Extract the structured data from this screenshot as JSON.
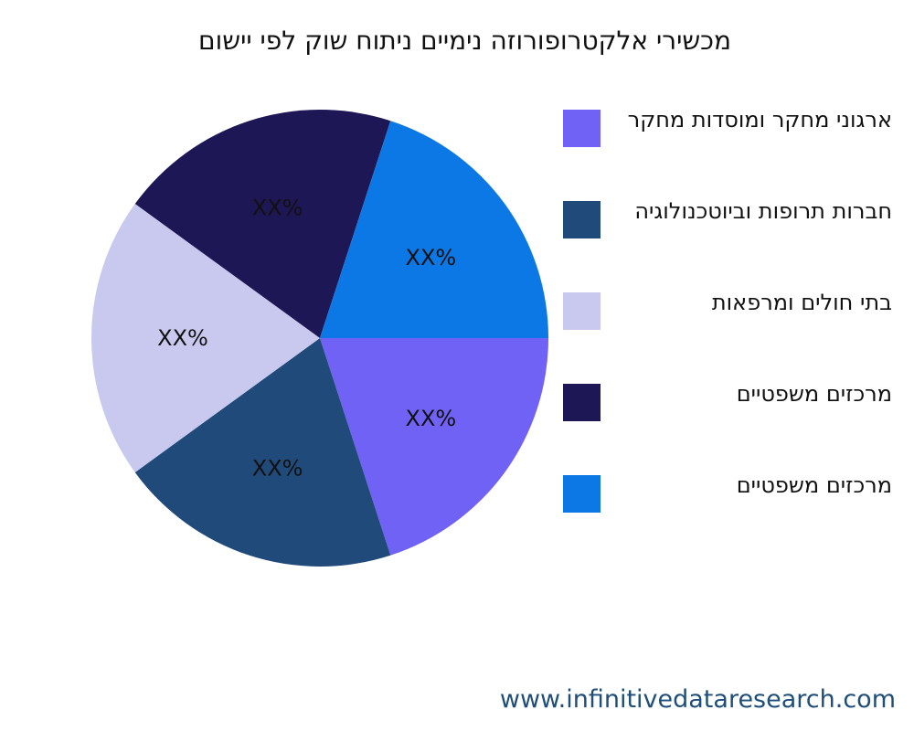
{
  "title": "מכשירי אלקטרופורוזה נימיים ניתוח שוק לפי יישום",
  "footer": "www.infinitivedataresearch.com",
  "chart_data": {
    "type": "pie",
    "slices": [
      {
        "label": "ארגוני מחקר ומוסדות מחקר",
        "value": 20,
        "display": "XX%",
        "color": "#7062f5"
      },
      {
        "label": "חברות תרופות וביוטכנולוגיה",
        "value": 20,
        "display": "XX%",
        "color": "#1f4a79"
      },
      {
        "label": "בתי חולים ומרפאות",
        "value": 20,
        "display": "XX%",
        "color": "#c9c9ef"
      },
      {
        "label": "מרכזים משפטיים",
        "value": 20,
        "display": "XX%",
        "color": "#1e1755"
      },
      {
        "label": "מרכזים משפטיים",
        "value": 20,
        "display": "XX%",
        "color": "#0c78e6"
      }
    ]
  }
}
